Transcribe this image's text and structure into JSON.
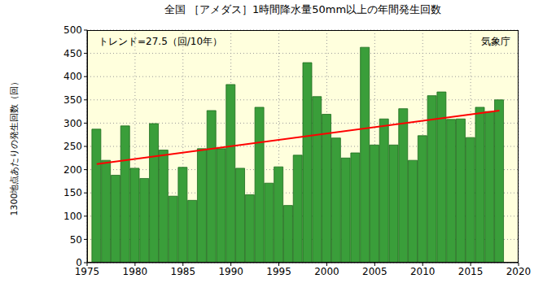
{
  "chart_data": {
    "type": "bar",
    "title": "全国 ［アメダス］1時間降水量50mm以上の年間発生回数",
    "y_label": "1300地点あたりの発生回数（回）",
    "annotations": [
      "トレンド=27.5（回/10年）",
      "気象庁"
    ],
    "x": [
      1976,
      1977,
      1978,
      1979,
      1980,
      1981,
      1982,
      1983,
      1984,
      1985,
      1986,
      1987,
      1988,
      1989,
      1990,
      1991,
      1992,
      1993,
      1994,
      1995,
      1996,
      1997,
      1998,
      1999,
      2000,
      2001,
      2002,
      2003,
      2004,
      2005,
      2006,
      2007,
      2008,
      2009,
      2010,
      2011,
      2012,
      2013,
      2014,
      2015,
      2016,
      2017,
      2018
    ],
    "values": [
      287,
      220,
      188,
      294,
      203,
      181,
      299,
      242,
      143,
      205,
      134,
      245,
      327,
      245,
      383,
      203,
      146,
      334,
      171,
      206,
      123,
      231,
      430,
      357,
      319,
      268,
      225,
      236,
      463,
      253,
      309,
      253,
      331,
      220,
      273,
      359,
      367,
      308,
      309,
      269,
      334,
      325,
      350
    ],
    "color": "#3a9e3a",
    "trend": {
      "type": "line",
      "x": [
        1976,
        2018
      ],
      "values": [
        212,
        327
      ],
      "color": "#ff0000"
    },
    "xlim": [
      1975,
      2020
    ],
    "xticks": [
      1975,
      1980,
      1985,
      1990,
      1995,
      2000,
      2005,
      2010,
      2015,
      2020
    ],
    "ylim": [
      0,
      500
    ],
    "yticks": [
      0,
      50,
      100,
      150,
      200,
      250,
      300,
      350,
      400,
      450,
      500
    ],
    "grid": true
  }
}
